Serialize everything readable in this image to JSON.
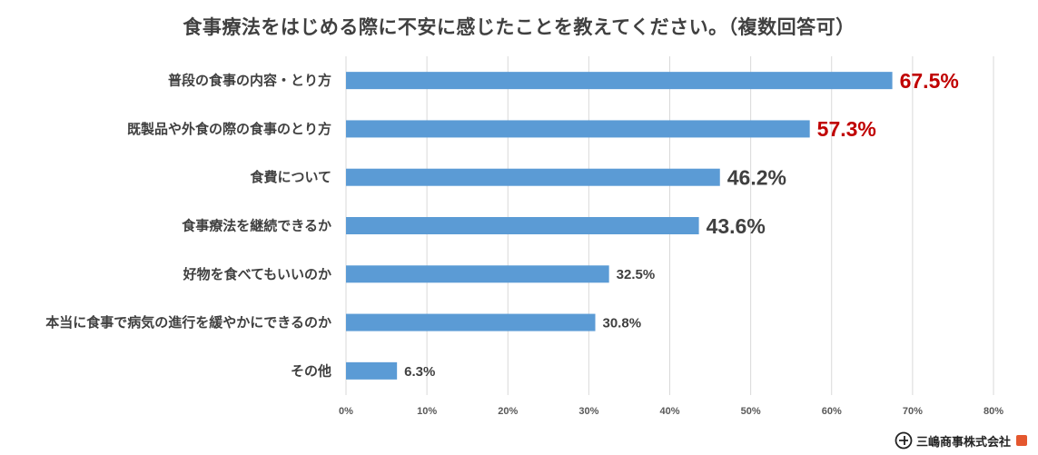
{
  "chart_data": {
    "type": "bar",
    "orientation": "horizontal",
    "title": "食事療法をはじめる際に不安に感じたことを教えてください。（複数回答可）",
    "categories": [
      "普段の食事の内容・とり方",
      "既製品や外食の際の食事のとり方",
      "食費について",
      "食事療法を継続できるか",
      "好物を食べてもいいのか",
      "本当に食事で病気の進行を緩やかにできるのか",
      "その他"
    ],
    "values": [
      67.5,
      57.3,
      46.2,
      43.6,
      32.5,
      30.8,
      6.3
    ],
    "value_labels": [
      "67.5%",
      "57.3%",
      "46.2%",
      "43.6%",
      "32.5%",
      "30.8%",
      "6.3%"
    ],
    "x_ticks": [
      "0%",
      "10%",
      "20%",
      "30%",
      "40%",
      "50%",
      "60%",
      "70%",
      "80%"
    ],
    "xlim": [
      0,
      80
    ],
    "grid": true,
    "colors": {
      "bar": "#5b9bd5",
      "highlight_label": "#c00000",
      "label": "#404040",
      "grid": "#d9d9d9"
    }
  },
  "logo": {
    "text": "三嶋商事株式会社",
    "icon": "mishima-logo-icon"
  }
}
